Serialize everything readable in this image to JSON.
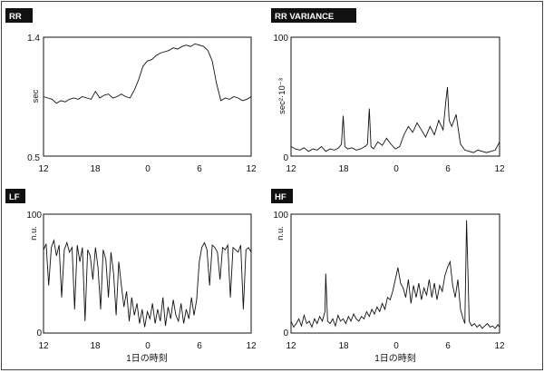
{
  "chart_data": [
    {
      "type": "line",
      "title": "RR",
      "ylabel": "sec",
      "xlabel": "",
      "ylim": [
        0.5,
        1.4
      ],
      "y_ticks": [
        "1.4",
        "0.5"
      ],
      "x_ticks": [
        "12",
        "18",
        "0",
        "6",
        "12"
      ],
      "x": [
        12,
        12.5,
        13,
        13.5,
        14,
        14.5,
        15,
        15.5,
        16,
        16.5,
        17,
        17.5,
        18,
        18.5,
        19,
        19.5,
        20,
        20.5,
        21,
        21.5,
        22,
        22.5,
        23,
        23.5,
        24,
        24.5,
        25,
        25.5,
        26,
        26.5,
        27,
        27.5,
        28,
        28.5,
        29,
        29.5,
        30,
        30.5,
        31,
        31.5,
        32,
        32.5,
        33,
        33.5,
        34,
        34.5,
        35,
        35.5,
        36
      ],
      "values": [
        0.95,
        0.94,
        0.93,
        0.9,
        0.92,
        0.91,
        0.93,
        0.94,
        0.93,
        0.95,
        0.94,
        0.93,
        0.99,
        0.94,
        0.96,
        0.97,
        0.94,
        0.95,
        0.97,
        0.95,
        0.94,
        1.0,
        1.08,
        1.18,
        1.22,
        1.23,
        1.26,
        1.28,
        1.29,
        1.3,
        1.32,
        1.31,
        1.33,
        1.34,
        1.33,
        1.35,
        1.34,
        1.33,
        1.3,
        1.22,
        1.05,
        0.92,
        0.94,
        0.93,
        0.95,
        0.94,
        0.92,
        0.93,
        0.95
      ]
    },
    {
      "type": "line",
      "title": "RR VARIANCE",
      "ylabel": "sec²·10⁻³",
      "xlabel": "",
      "ylim": [
        0,
        100
      ],
      "y_ticks": [
        "100",
        "0"
      ],
      "x_ticks": [
        "12",
        "18",
        "0",
        "6",
        "12"
      ],
      "x": [
        12,
        12.5,
        13,
        13.5,
        14,
        14.5,
        15,
        15.5,
        16,
        16.5,
        17,
        17.5,
        17.8,
        18,
        18.2,
        18.5,
        19,
        19.5,
        20,
        20.5,
        20.8,
        21,
        21.2,
        21.5,
        22,
        22.5,
        23,
        23.5,
        24,
        24.5,
        25,
        25.5,
        26,
        26.5,
        27,
        27.5,
        28,
        28.5,
        29,
        29.5,
        29.8,
        30,
        30.2,
        30.5,
        31,
        31.5,
        32,
        32.5,
        33,
        33.5,
        34,
        34.5,
        35,
        35.5,
        36
      ],
      "values": [
        8,
        6,
        5,
        7,
        4,
        6,
        5,
        8,
        4,
        6,
        5,
        7,
        10,
        34,
        8,
        6,
        7,
        5,
        6,
        8,
        10,
        40,
        8,
        6,
        12,
        9,
        15,
        10,
        6,
        8,
        18,
        25,
        20,
        28,
        22,
        16,
        25,
        18,
        30,
        22,
        45,
        58,
        30,
        25,
        35,
        10,
        5,
        4,
        3,
        5,
        4,
        3,
        4,
        5,
        12
      ]
    },
    {
      "type": "line",
      "title": "LF",
      "ylabel": "n.u.",
      "xlabel": "1日の時刻",
      "ylim": [
        0,
        100
      ],
      "y_ticks": [
        "100",
        "0"
      ],
      "x_ticks": [
        "12",
        "18",
        "0",
        "6",
        "12"
      ],
      "x": [
        12,
        12.3,
        12.6,
        12.9,
        13.2,
        13.5,
        13.8,
        14.1,
        14.4,
        14.7,
        15,
        15.3,
        15.6,
        15.9,
        16.2,
        16.5,
        16.8,
        17.1,
        17.4,
        17.7,
        18,
        18.3,
        18.6,
        18.9,
        19.2,
        19.5,
        19.8,
        20.1,
        20.4,
        20.7,
        21,
        21.3,
        21.6,
        21.9,
        22.2,
        22.5,
        22.8,
        23.1,
        23.4,
        23.7,
        24,
        24.3,
        24.6,
        24.9,
        25.2,
        25.5,
        25.8,
        26.1,
        26.4,
        26.7,
        27,
        27.3,
        27.6,
        27.9,
        28.2,
        28.5,
        28.8,
        29.1,
        29.4,
        29.7,
        30,
        30.3,
        30.6,
        30.9,
        31.2,
        31.5,
        31.8,
        32.1,
        32.4,
        32.7,
        33,
        33.3,
        33.6,
        33.9,
        34.2,
        34.5,
        34.8,
        35.1,
        35.4,
        35.7,
        36
      ],
      "values": [
        70,
        75,
        40,
        72,
        78,
        65,
        74,
        30,
        70,
        76,
        68,
        72,
        20,
        74,
        60,
        72,
        10,
        70,
        65,
        45,
        72,
        55,
        20,
        70,
        62,
        30,
        68,
        50,
        15,
        60,
        40,
        22,
        35,
        10,
        30,
        15,
        25,
        8,
        20,
        5,
        18,
        12,
        25,
        8,
        20,
        10,
        30,
        6,
        22,
        12,
        28,
        15,
        10,
        25,
        8,
        20,
        12,
        30,
        15,
        28,
        60,
        72,
        76,
        70,
        40,
        74,
        72,
        68,
        45,
        72,
        70,
        74,
        30,
        72,
        70,
        68,
        74,
        20,
        70,
        72,
        68
      ]
    },
    {
      "type": "line",
      "title": "HF",
      "ylabel": "n.u.",
      "xlabel": "1日の時刻",
      "ylim": [
        0,
        100
      ],
      "y_ticks": [
        "100",
        "0"
      ],
      "x_ticks": [
        "12",
        "18",
        "0",
        "6",
        "12"
      ],
      "x": [
        12,
        12.3,
        12.6,
        12.9,
        13.2,
        13.5,
        13.8,
        14.1,
        14.4,
        14.7,
        15,
        15.3,
        15.6,
        15.9,
        16,
        16.2,
        16.5,
        16.8,
        17.1,
        17.4,
        17.7,
        18,
        18.3,
        18.6,
        18.9,
        19.2,
        19.5,
        19.8,
        20.1,
        20.4,
        20.7,
        21,
        21.3,
        21.6,
        21.9,
        22.2,
        22.5,
        22.8,
        23.1,
        23.4,
        23.7,
        24,
        24.3,
        24.6,
        24.9,
        25.2,
        25.5,
        25.8,
        26.1,
        26.4,
        26.7,
        27,
        27.3,
        27.6,
        27.9,
        28.2,
        28.5,
        28.8,
        29.1,
        29.4,
        29.7,
        30,
        30.3,
        30.6,
        30.9,
        31.2,
        31.5,
        31.8,
        32,
        32.2,
        32.5,
        32.8,
        33.1,
        33.4,
        33.7,
        34,
        34.3,
        34.6,
        34.9,
        35.2,
        35.5,
        35.8,
        36
      ],
      "values": [
        10,
        5,
        8,
        12,
        6,
        15,
        8,
        10,
        5,
        12,
        8,
        14,
        10,
        18,
        50,
        10,
        8,
        12,
        6,
        15,
        10,
        12,
        8,
        14,
        10,
        16,
        12,
        10,
        14,
        12,
        18,
        14,
        20,
        16,
        22,
        18,
        25,
        20,
        30,
        28,
        35,
        45,
        55,
        42,
        38,
        30,
        45,
        25,
        40,
        30,
        42,
        28,
        38,
        32,
        45,
        30,
        42,
        28,
        40,
        35,
        48,
        55,
        60,
        40,
        30,
        45,
        20,
        12,
        8,
        95,
        10,
        6,
        8,
        5,
        7,
        4,
        6,
        8,
        5,
        6,
        4,
        7,
        5
      ]
    }
  ]
}
